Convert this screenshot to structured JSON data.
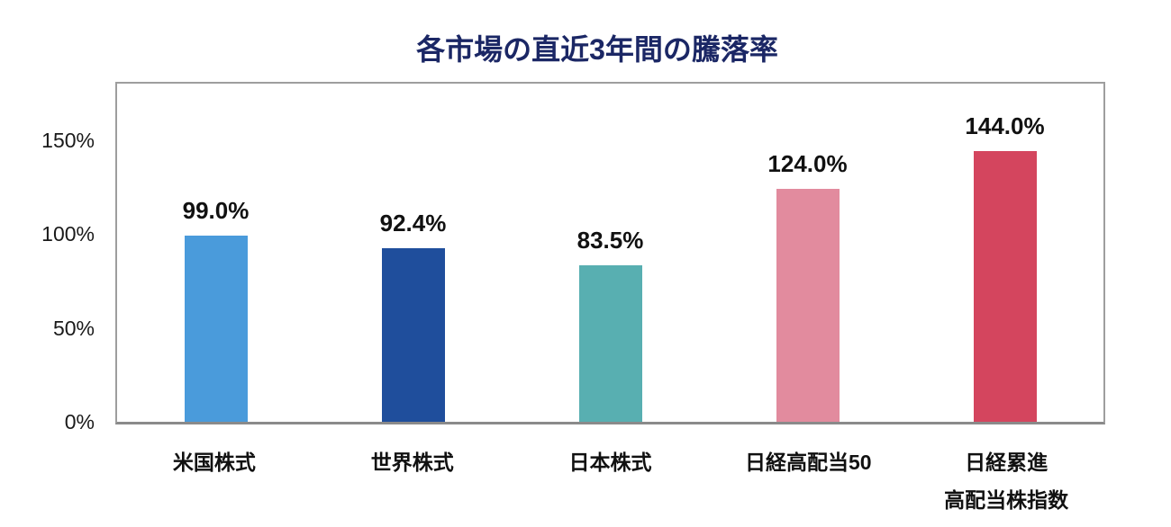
{
  "chart_data": {
    "type": "bar",
    "title": "各市場の直近3年間の騰落率",
    "title_color": "#1B2765",
    "categories": [
      "米国株式",
      "世界株式",
      "日本株式",
      "日経高配当50",
      "日経累進\n高配当株指数"
    ],
    "values": [
      99.0,
      92.4,
      83.5,
      124.0,
      144.0
    ],
    "value_labels": [
      "99.0%",
      "92.4%",
      "83.5%",
      "124.0%",
      "144.0%"
    ],
    "bar_colors": [
      "#4A9BDB",
      "#1F4E9C",
      "#58AFB1",
      "#E28B9E",
      "#D4455E"
    ],
    "yticks": [
      {
        "value": 0,
        "label": "0%"
      },
      {
        "value": 50,
        "label": "50%"
      },
      {
        "value": 100,
        "label": "100%"
      },
      {
        "value": 150,
        "label": "150%"
      }
    ],
    "ylim": [
      0,
      180
    ],
    "xlabel": "",
    "ylabel": "",
    "grid": false,
    "legend": "none",
    "plot_border_color": "#9E9E9E",
    "value_label_color": "#111111",
    "axis_label_color": "#1a1a1a",
    "background_color": "#FFFFFF"
  }
}
